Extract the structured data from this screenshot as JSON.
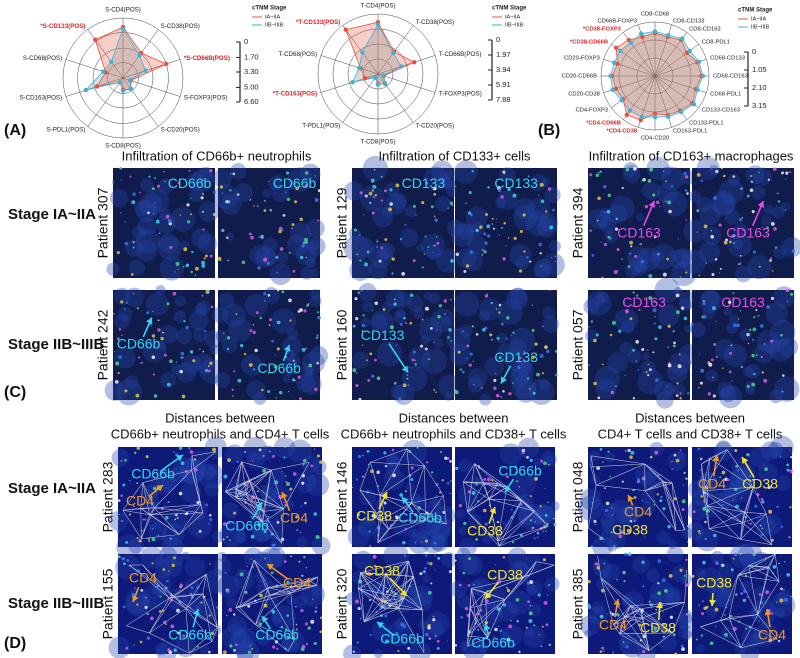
{
  "chart_data": [
    {
      "type": "radar",
      "legend_title": "cTNM Stage",
      "categories": [
        "S-CD4(POS)",
        "S-CD38(POS)",
        "*S-CD66B(POS)",
        "S-FOXP3(POS)",
        "S-CD20(POS)",
        "S-CD8(POS)",
        "S-PDL1(POS)",
        "S-CD163(POS)",
        "S-CD68(POS)",
        "*S-CD133(POS)"
      ],
      "series": [
        {
          "name": "IA~IIA",
          "color": "#e8503a",
          "values": [
            5.6,
            3.4,
            5.0,
            0.9,
            1.5,
            1.3,
            0.6,
            3.0,
            2.0,
            5.2
          ]
        },
        {
          "name": "IIB~IIIB",
          "color": "#3cb4d8",
          "values": [
            5.4,
            3.1,
            2.6,
            0.8,
            1.5,
            1.4,
            0.6,
            4.3,
            2.3,
            2.2
          ]
        }
      ],
      "rlim": [
        0,
        6.6
      ],
      "rticks": [
        0,
        {
          "value": 1.7,
          "label": "1.70"
        },
        {
          "value": 3.3,
          "label": "3.30"
        },
        {
          "value": 5,
          "label": "5.00"
        },
        {
          "value": 6.6,
          "label": "6.60"
        }
      ]
    },
    {
      "type": "radar",
      "legend_title": "cTNM Stage",
      "categories": [
        "T-CD4(POS)",
        "T-CD38(POS)",
        "T-CD66B(POS)",
        "T-FOXP3(POS)",
        "T-CD20(POS)",
        "T-CD8(POS)",
        "T-PDL1(POS)",
        "*T-CD163(POS)",
        "T-CD68(POS)",
        "*T-CD133(POS)"
      ],
      "series": [
        {
          "name": "IA~IIA",
          "color": "#e8503a",
          "values": [
            6.8,
            3.6,
            5.0,
            0.8,
            1.6,
            1.3,
            0.6,
            1.8,
            2.4,
            7.2
          ]
        },
        {
          "name": "IIB~IIIB",
          "color": "#3cb4d8",
          "values": [
            6.5,
            3.4,
            3.2,
            0.7,
            1.5,
            1.4,
            0.6,
            3.5,
            2.6,
            3.5
          ]
        }
      ],
      "rlim": [
        0,
        7.88
      ],
      "rticks": [
        0,
        1.97,
        3.94,
        5.91,
        7.88
      ]
    },
    {
      "type": "radar",
      "legend_title": "cTNM Stage",
      "categories": [
        "CD8-CD68",
        "CD8-CD133",
        "CD8-CD163",
        "CD8-PDL1",
        "CD68-CD133",
        "CD68-CD163",
        "CD68-PDL1",
        "CD133-CD163",
        "CD133-PDL1",
        "CD163-PDL1",
        "CD4-CD20",
        "*CD4-CD38",
        "*CD4-CD66B",
        "CD4-FOXP3",
        "CD20-CD38",
        "CD20-CD66B",
        "CD20-FOXP3",
        "*CD38-CD66B",
        "*CD38-FOXP3",
        "CD66B-FOXP3"
      ],
      "series": [
        {
          "name": "IA~IIA",
          "color": "#e8503a",
          "values": [
            2.5,
            2.4,
            2.6,
            2.3,
            2.6,
            2.7,
            2.5,
            2.7,
            2.5,
            2.4,
            2.2,
            2.7,
            2.8,
            2.3,
            2.4,
            2.5,
            2.3,
            2.8,
            2.6,
            2.4
          ]
        },
        {
          "name": "IIB~IIIB",
          "color": "#3cb4d8",
          "values": [
            2.6,
            2.5,
            2.7,
            2.5,
            2.7,
            2.8,
            2.6,
            2.8,
            2.6,
            2.5,
            2.4,
            2.5,
            2.5,
            2.4,
            2.6,
            2.6,
            2.5,
            2.5,
            2.4,
            2.6
          ]
        }
      ],
      "rlim": [
        0,
        3.15
      ],
      "rticks": [
        0,
        1.05,
        {
          "value": 2.1,
          "label": "2.10"
        },
        3.15
      ]
    }
  ],
  "radar_panel_labels": [
    "(A)",
    "(B)"
  ],
  "infiltration": {
    "panel_label": "(C)",
    "stage_labels": [
      "Stage IA~IIA",
      "Stage IIB~IIIB"
    ],
    "groups": [
      {
        "title": "Infiltration of CD66b+ neutrophils",
        "patients": [
          "Patient 307",
          "Patient 242"
        ],
        "images": [
          [
            {
              "text": "CD66b",
              "color": "#35d4ee"
            }
          ],
          [
            {
              "text": "CD66b",
              "color": "#35d4ee"
            }
          ],
          [
            {
              "text": "CD66b",
              "color": "#35d4ee"
            }
          ],
          [
            {
              "text": "CD66b",
              "color": "#35d4ee"
            }
          ]
        ]
      },
      {
        "title": "Infiltration of CD133+ cells",
        "patients": [
          "Patient 129",
          "Patient 160"
        ],
        "images": [
          [
            {
              "text": "CD133",
              "color": "#35d4ee"
            }
          ],
          [
            {
              "text": "CD133",
              "color": "#35d4ee"
            }
          ],
          [
            {
              "text": "CD133",
              "color": "#35d4ee"
            }
          ],
          [
            {
              "text": "CD133",
              "color": "#35d4ee"
            }
          ]
        ]
      },
      {
        "title": "Infiltration of CD163+ macrophages",
        "patients": [
          "Patient 394",
          "Patient 057"
        ],
        "images": [
          [
            {
              "text": "CD163",
              "color": "#e84ce8"
            }
          ],
          [
            {
              "text": "CD163",
              "color": "#e84ce8"
            }
          ],
          [
            {
              "text": "CD163",
              "color": "#e84ce8"
            }
          ],
          [
            {
              "text": "CD163",
              "color": "#e84ce8"
            }
          ]
        ]
      }
    ]
  },
  "distances": {
    "panel_label": "(D)",
    "stage_labels": [
      "Stage IA~IIA",
      "Stage IIB~IIIB"
    ],
    "groups": [
      {
        "title_lines": [
          "Distances between",
          "CD66b+ neutrophils and CD4+ T cells"
        ],
        "patients": [
          "Patient 283",
          "Patient 155"
        ],
        "images": [
          [
            {
              "text": "CD66b",
              "color": "#35d4ee"
            },
            {
              "text": "CD4",
              "color": "#f39a1e"
            }
          ],
          [
            {
              "text": "CD66b",
              "color": "#35d4ee"
            },
            {
              "text": "CD4",
              "color": "#f39a1e"
            }
          ],
          [
            {
              "text": "CD4",
              "color": "#f39a1e"
            },
            {
              "text": "CD66b",
              "color": "#35d4ee"
            }
          ],
          [
            {
              "text": "CD4",
              "color": "#f39a1e"
            },
            {
              "text": "CD66b",
              "color": "#35d4ee"
            }
          ]
        ]
      },
      {
        "title_lines": [
          "Distances between",
          "CD66b+ neutrophils and CD38+ T cells"
        ],
        "patients": [
          "Patient 146",
          "Patient 320"
        ],
        "images": [
          [
            {
              "text": "CD38",
              "color": "#f5e626"
            },
            {
              "text": "CD66b",
              "color": "#35d4ee"
            }
          ],
          [
            {
              "text": "CD66b",
              "color": "#35d4ee"
            },
            {
              "text": "CD38",
              "color": "#f5e626"
            }
          ],
          [
            {
              "text": "CD38",
              "color": "#f5e626"
            },
            {
              "text": "CD66b",
              "color": "#35d4ee"
            }
          ],
          [
            {
              "text": "CD38",
              "color": "#f5e626"
            },
            {
              "text": "CD66b",
              "color": "#35d4ee"
            }
          ]
        ]
      },
      {
        "title_lines": [
          "Distances between",
          "CD4+ T cells and CD38+ T cells"
        ],
        "patients": [
          "Patient 048",
          "Patient 385"
        ],
        "images": [
          [
            {
              "text": "CD4",
              "color": "#f39a1e"
            },
            {
              "text": "CD38",
              "color": "#f5e626"
            }
          ],
          [
            {
              "text": "CD4",
              "color": "#f39a1e"
            },
            {
              "text": "CD38",
              "color": "#f5e626"
            }
          ],
          [
            {
              "text": "CD4",
              "color": "#f39a1e"
            },
            {
              "text": "CD38",
              "color": "#f5e626"
            }
          ],
          [
            {
              "text": "CD38",
              "color": "#f5e626"
            },
            {
              "text": "CD4",
              "color": "#f39a1e"
            }
          ]
        ]
      }
    ]
  }
}
